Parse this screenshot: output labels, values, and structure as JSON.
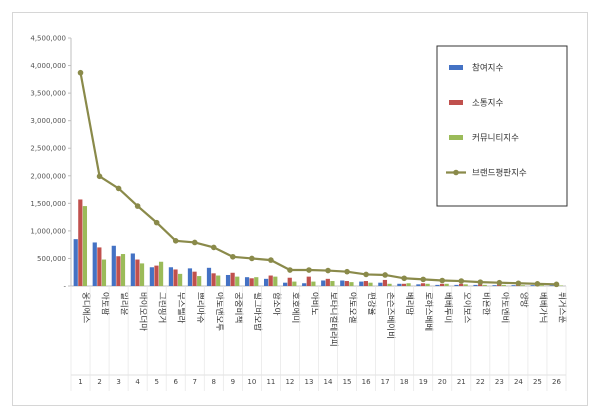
{
  "chart_data": {
    "type": "bar",
    "categories": [
      "웅디에스",
      "아토팜",
      "일리윤",
      "바이오더마",
      "그린핑거",
      "무스텔라",
      "쁘리마쥬",
      "아토앤오투",
      "궁중비책",
      "필그바오밥",
      "함소아",
      "호호에미",
      "아비노",
      "보타니컬테라피",
      "아토오겔",
      "편강율",
      "존슨즈베이비",
      "베리맘",
      "로하스베베",
      "베베루미",
      "오이보스",
      "비욘한",
      "아토엔비",
      "양방",
      "베베가닉",
      "퓌거스푼"
    ],
    "indices": [
      "1",
      "2",
      "3",
      "4",
      "5",
      "6",
      "7",
      "8",
      "9",
      "10",
      "11",
      "12",
      "13",
      "14",
      "15",
      "16",
      "17",
      "18",
      "19",
      "20",
      "21",
      "22",
      "23",
      "24",
      "25",
      "26"
    ],
    "series": [
      {
        "name": "참여지수",
        "color": "#4472c4",
        "kind": "bar",
        "values": [
          850000,
          790000,
          730000,
          590000,
          340000,
          340000,
          320000,
          330000,
          200000,
          160000,
          130000,
          60000,
          50000,
          100000,
          100000,
          80000,
          60000,
          40000,
          30000,
          20000,
          20000,
          20000,
          15000,
          15000,
          15000,
          10000
        ]
      },
      {
        "name": "소통지수",
        "color": "#c0504d",
        "kind": "bar",
        "values": [
          1570000,
          700000,
          540000,
          480000,
          370000,
          300000,
          260000,
          230000,
          240000,
          140000,
          190000,
          150000,
          170000,
          130000,
          90000,
          90000,
          110000,
          40000,
          50000,
          40000,
          40000,
          30000,
          30000,
          20000,
          20000,
          15000
        ]
      },
      {
        "name": "커뮤니티지수",
        "color": "#9bbb59",
        "kind": "bar",
        "values": [
          1450000,
          480000,
          580000,
          410000,
          440000,
          220000,
          180000,
          190000,
          170000,
          160000,
          170000,
          80000,
          80000,
          90000,
          70000,
          60000,
          40000,
          50000,
          40000,
          40000,
          30000,
          20000,
          20000,
          15000,
          15000,
          10000
        ]
      },
      {
        "name": "브랜드평판지수",
        "color": "#8a8a4a",
        "kind": "line",
        "values": [
          3870000,
          1990000,
          1770000,
          1450000,
          1150000,
          820000,
          790000,
          700000,
          530000,
          500000,
          470000,
          290000,
          290000,
          280000,
          260000,
          210000,
          200000,
          140000,
          120000,
          100000,
          90000,
          70000,
          60000,
          50000,
          40000,
          30000
        ]
      }
    ],
    "yticks": [
      "4,500,000",
      "4,000,000",
      "3,500,000",
      "3,000,000",
      "2,500,000",
      "2,000,000",
      "1,500,000",
      "1,000,000",
      "500,000",
      "-"
    ],
    "ylim": [
      0,
      4500000
    ],
    "grid": false,
    "legend": "right",
    "title": "",
    "xlabel": "",
    "ylabel": ""
  }
}
